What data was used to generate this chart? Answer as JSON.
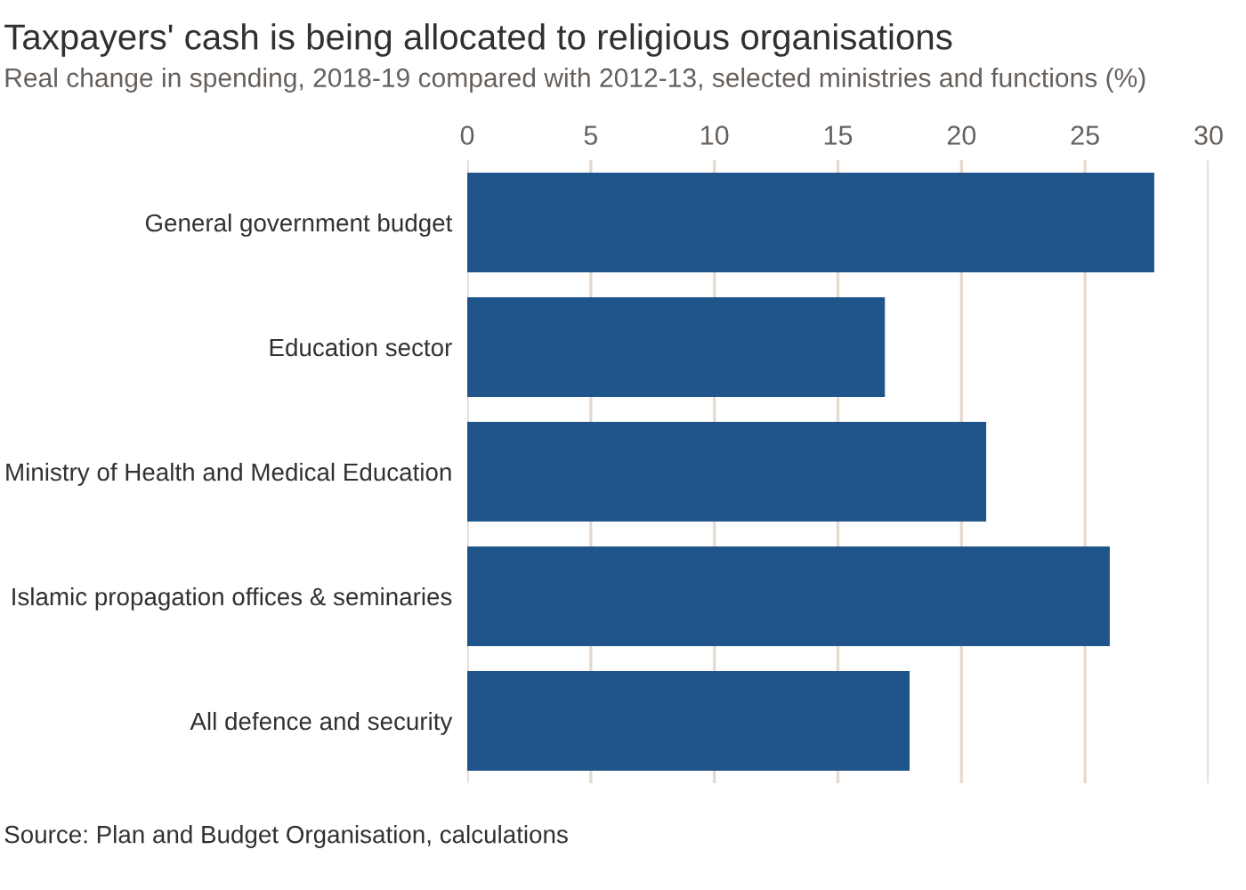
{
  "chart_data": {
    "type": "bar",
    "orientation": "horizontal",
    "title": "Taxpayers' cash is being allocated to religious organisations",
    "subtitle": "Real change in spending, 2018-19 compared with 2012-13, selected ministries and functions (%)",
    "categories": [
      "General government budget",
      "Education sector",
      "Ministry of Health and Medical Education",
      "Islamic propagation offices & seminaries",
      "All defence and security"
    ],
    "values": [
      27.8,
      16.9,
      21.0,
      26.0,
      17.9
    ],
    "color": "#1f558b",
    "xlim": [
      0,
      30
    ],
    "xticks": [
      0,
      5,
      10,
      15,
      20,
      25,
      30
    ],
    "grid": "x",
    "annotations": [
      "Source: Plan and Budget Organisation, calculations"
    ]
  }
}
